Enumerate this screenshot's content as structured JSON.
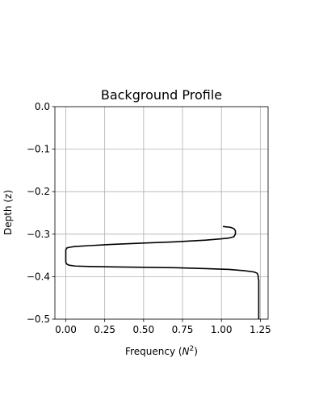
{
  "chart_data": {
    "type": "line",
    "title": "Background Profile",
    "xlabel_text": "Frequency (",
    "xlabel_sym": "N",
    "xlabel_sup": "2",
    "xlabel_close": ")",
    "ylabel": "Depth (z)",
    "xlim": [
      -0.07,
      1.3
    ],
    "ylim": [
      -0.5,
      0.0
    ],
    "xticks": [
      0.0,
      0.25,
      0.5,
      0.75,
      1.0,
      1.25
    ],
    "xtick_labels": [
      "0.00",
      "0.25",
      "0.50",
      "0.75",
      "1.00",
      "1.25"
    ],
    "yticks": [
      0.0,
      -0.1,
      -0.2,
      -0.3,
      -0.4,
      -0.5
    ],
    "ytick_labels": [
      "0.0",
      "−0.1",
      "−0.2",
      "−0.3",
      "−0.4",
      "−0.5"
    ],
    "grid": true,
    "series": [
      {
        "color": "#000000",
        "x": [
          1.01,
          1.06,
          1.08,
          1.09,
          1.09,
          1.08,
          1.05,
          1.0,
          0.9,
          0.7,
          0.5,
          0.3,
          0.15,
          0.06,
          0.02,
          0.005,
          0.0,
          0.0,
          0.0,
          0.005,
          0.02,
          0.06,
          0.15,
          0.3,
          0.5,
          0.7,
          0.9,
          1.05,
          1.15,
          1.21,
          1.23,
          1.235,
          1.24,
          1.24
        ],
        "y": [
          -0.282,
          -0.284,
          -0.287,
          -0.292,
          -0.3,
          -0.306,
          -0.309,
          -0.311,
          -0.314,
          -0.318,
          -0.321,
          -0.324,
          -0.327,
          -0.329,
          -0.331,
          -0.333,
          -0.337,
          -0.355,
          -0.366,
          -0.37,
          -0.373,
          -0.375,
          -0.376,
          -0.377,
          -0.378,
          -0.379,
          -0.381,
          -0.383,
          -0.386,
          -0.389,
          -0.392,
          -0.396,
          -0.41,
          -0.5
        ]
      }
    ]
  }
}
